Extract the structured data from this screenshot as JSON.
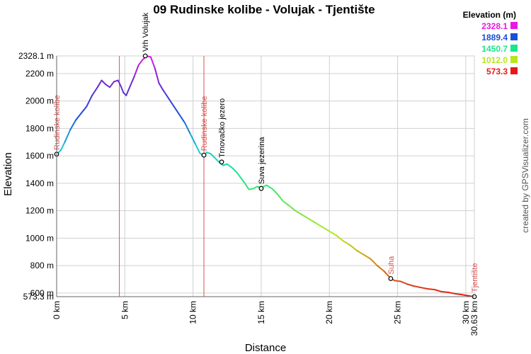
{
  "chart_data": {
    "type": "line",
    "title": "09 Rudinske kolibe - Volujak - Tjentište",
    "xlabel": "Distance",
    "ylabel": "Elevation",
    "xlim": [
      0,
      30.63
    ],
    "ylim": [
      573.3,
      2328.1
    ],
    "x_ticks": [
      {
        "value": 0,
        "label": "0 km"
      },
      {
        "value": 5,
        "label": "5 km"
      },
      {
        "value": 10,
        "label": "10 km"
      },
      {
        "value": 15,
        "label": "15 km"
      },
      {
        "value": 20,
        "label": "20 km"
      },
      {
        "value": 25,
        "label": "25 km"
      },
      {
        "value": 30,
        "label": "30 km"
      },
      {
        "value": 30.63,
        "label": "30.63 km"
      }
    ],
    "y_ticks": [
      {
        "value": 573.3,
        "label": "573.3 m"
      },
      {
        "value": 600,
        "label": "600 m"
      },
      {
        "value": 800,
        "label": "800 m"
      },
      {
        "value": 1000,
        "label": "1000 m"
      },
      {
        "value": 1200,
        "label": "1200 m"
      },
      {
        "value": 1400,
        "label": "1400 m"
      },
      {
        "value": 1600,
        "label": "1600 m"
      },
      {
        "value": 1800,
        "label": "1800 m"
      },
      {
        "value": 2000,
        "label": "2000 m"
      },
      {
        "value": 2200,
        "label": "2200 m"
      },
      {
        "value": 2328.1,
        "label": "2328.1 m"
      }
    ],
    "grid": true,
    "legend": {
      "title": "Elevation (m)",
      "placement": "top-right",
      "entries": [
        {
          "label": "2328.1",
          "color": "#e619e6"
        },
        {
          "label": "1889.4",
          "color": "#1a4fd6"
        },
        {
          "label": "1450.7",
          "color": "#19e68a"
        },
        {
          "label": "1012.0",
          "color": "#b8e619"
        },
        {
          "label": "573.3",
          "color": "#e61919"
        }
      ]
    },
    "series": [
      {
        "x": [
          0,
          0.3,
          0.6,
          1.0,
          1.4,
          1.8,
          2.2,
          2.6,
          3.0,
          3.3,
          3.6,
          3.9,
          4.2,
          4.5,
          4.7,
          4.9,
          5.1,
          5.4,
          5.7,
          6.0,
          6.3,
          6.6,
          6.9,
          7.2,
          7.5,
          7.8,
          8.2,
          8.6,
          9.0,
          9.4,
          9.8,
          10.2,
          10.5,
          10.8,
          11.0,
          11.3,
          11.6,
          11.9,
          12.2,
          12.5,
          12.9,
          13.2,
          13.5,
          13.8,
          14.1,
          14.4,
          14.7,
          15.0,
          15.4,
          15.8,
          16.2,
          16.6,
          17.0,
          17.5,
          18.0,
          18.5,
          19.0,
          19.5,
          20.0,
          20.5,
          21.0,
          21.5,
          22.0,
          22.5,
          23.0,
          23.5,
          24.0,
          24.5,
          24.8,
          25.2,
          25.7,
          26.2,
          26.7,
          27.2,
          27.7,
          28.2,
          28.7,
          29.2,
          29.7,
          30.2,
          30.63
        ],
        "y": [
          1612,
          1640,
          1700,
          1790,
          1860,
          1910,
          1960,
          2040,
          2100,
          2150,
          2120,
          2100,
          2140,
          2150,
          2110,
          2060,
          2040,
          2110,
          2180,
          2260,
          2300,
          2328,
          2320,
          2240,
          2130,
          2080,
          2020,
          1960,
          1900,
          1840,
          1760,
          1680,
          1620,
          1600,
          1625,
          1615,
          1585,
          1555,
          1530,
          1540,
          1510,
          1480,
          1440,
          1400,
          1355,
          1360,
          1375,
          1370,
          1385,
          1360,
          1320,
          1270,
          1240,
          1200,
          1170,
          1140,
          1110,
          1080,
          1050,
          1020,
          980,
          950,
          910,
          880,
          850,
          800,
          760,
          705,
          690,
          685,
          665,
          650,
          640,
          630,
          625,
          610,
          605,
          595,
          588,
          580,
          573
        ]
      }
    ],
    "waypoints": [
      {
        "x": 0,
        "y": 1612,
        "label": "Rudinske kolibe",
        "color": "#d9534f"
      },
      {
        "x": 6.5,
        "y": 2328.1,
        "label": "Vrh Volujak",
        "color": "#000000"
      },
      {
        "x": 10.8,
        "y": 1605,
        "label": "Rudinske kolibe",
        "color": "#d9534f"
      },
      {
        "x": 12.1,
        "y": 1555,
        "label": "Trnovačko jezero",
        "color": "#000000"
      },
      {
        "x": 15.0,
        "y": 1362,
        "label": "Suva jezerina",
        "color": "#000000"
      },
      {
        "x": 24.5,
        "y": 705,
        "label": "Suha",
        "color": "#d9534f"
      },
      {
        "x": 30.63,
        "y": 573.3,
        "label": "Tjentište",
        "color": "#d9534f"
      }
    ],
    "vertical_markers": [
      4.6,
      10.8
    ]
  },
  "credit": "created by GPSVisualizer.com"
}
